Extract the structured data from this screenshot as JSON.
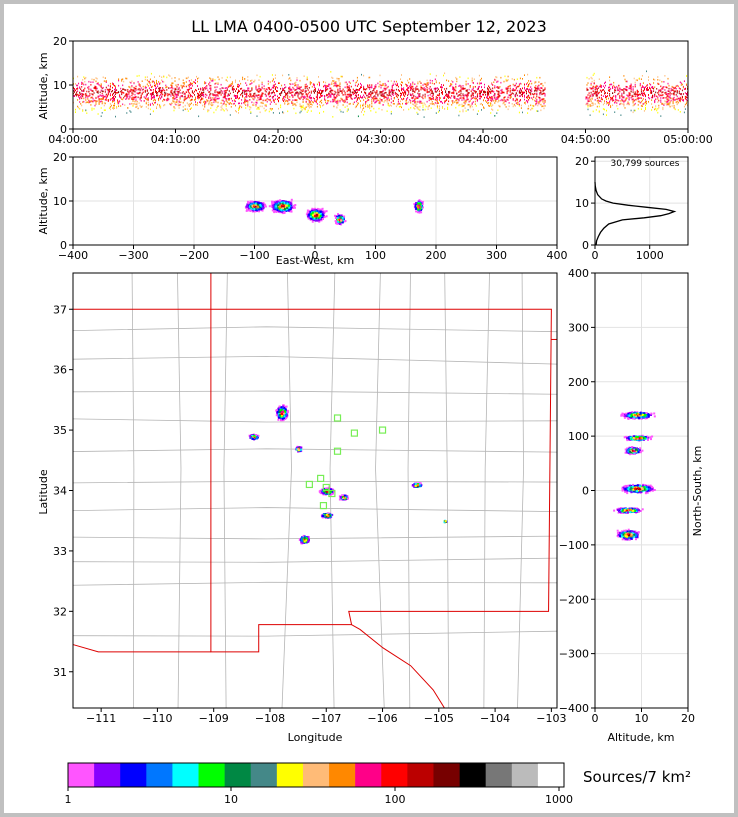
{
  "title": "LL LMA 0400-0500 UTC September 12, 2023",
  "colorbar": {
    "label": "Sources/7 km²",
    "ticks": [
      "1",
      "10",
      "100",
      "1000"
    ],
    "colors": [
      "#ff55ff",
      "#8800ff",
      "#0000ff",
      "#0077ff",
      "#00ffff",
      "#00ff00",
      "#008844",
      "#448888",
      "#ffff00",
      "#ffbb77",
      "#ff8800",
      "#ff0088",
      "#ff0000",
      "#bb0000",
      "#770000",
      "#000000",
      "#777777",
      "#bbbbbb",
      "#ffffff"
    ]
  },
  "panels": {
    "time_height": {
      "ylabel": "Altitude, km",
      "yticks": [
        "0",
        "10",
        "20"
      ],
      "xticks": [
        "04:00:00",
        "04:10:00",
        "04:20:00",
        "04:30:00",
        "04:40:00",
        "04:50:00",
        "05:00:00"
      ]
    },
    "ew_height": {
      "ylabel": "Altitude, km",
      "xlabel": "East-West, km",
      "yticks": [
        "0",
        "10",
        "20"
      ],
      "xticks": [
        "−400",
        "−300",
        "−200",
        "−100",
        "0",
        "100",
        "200",
        "300",
        "400"
      ]
    },
    "histogram": {
      "annotation": "30,799 sources",
      "yticks": [
        "0",
        "10",
        "20"
      ],
      "xticks": [
        "0",
        "1000"
      ]
    },
    "plan_view": {
      "xlabel": "Longitude",
      "ylabel": "Latitude",
      "xticks": [
        "−111",
        "−110",
        "−109",
        "−108",
        "−107",
        "−106",
        "−105",
        "−104",
        "−103"
      ],
      "yticks": [
        "31",
        "32",
        "33",
        "34",
        "35",
        "36",
        "37"
      ]
    },
    "ns_height": {
      "xlabel": "Altitude, km",
      "ylabel": "North-South, km",
      "xticks": [
        "0",
        "10",
        "20"
      ],
      "yticks": [
        "−400",
        "−300",
        "−200",
        "−100",
        "0",
        "100",
        "200",
        "300",
        "400"
      ]
    }
  },
  "chart_data": {
    "type": "scatter",
    "total_sources": 30799,
    "time_height": {
      "xlim": [
        "04:00:00",
        "05:00:00"
      ],
      "ylim": [
        0,
        20
      ]
    },
    "ew_height": {
      "xlim": [
        -400,
        400
      ],
      "ylim": [
        0,
        20
      ],
      "clusters": [
        {
          "x": -100,
          "alt": 9
        },
        {
          "x": -55,
          "alt": 9
        },
        {
          "x": 0,
          "alt": 7
        },
        {
          "x": 40,
          "alt": 6
        },
        {
          "x": 170,
          "alt": 9
        }
      ]
    },
    "altitude_histogram": {
      "xlim": [
        0,
        1700
      ],
      "ylim": [
        0,
        21
      ],
      "peak_alt_km": 8,
      "peak_count": 1450,
      "profile": [
        [
          0,
          20
        ],
        [
          1,
          30
        ],
        [
          2,
          60
        ],
        [
          3,
          100
        ],
        [
          4,
          160
        ],
        [
          5,
          250
        ],
        [
          6,
          500
        ],
        [
          6.5,
          900
        ],
        [
          7,
          1200
        ],
        [
          7.5,
          1350
        ],
        [
          8,
          1450
        ],
        [
          8.5,
          1300
        ],
        [
          9,
          950
        ],
        [
          9.5,
          600
        ],
        [
          10,
          330
        ],
        [
          10.5,
          200
        ],
        [
          11,
          120
        ],
        [
          12,
          50
        ],
        [
          13,
          20
        ],
        [
          14,
          5
        ],
        [
          15,
          0
        ]
      ]
    },
    "plan_view": {
      "xlim": [
        -111.5,
        -102.9
      ],
      "ylim": [
        30.4,
        37.6
      ],
      "clusters": [
        {
          "lon": -107.8,
          "lat": 35.3
        },
        {
          "lon": -108.3,
          "lat": 34.9
        },
        {
          "lon": -107.5,
          "lat": 34.7
        },
        {
          "lon": -107.0,
          "lat": 34.0
        },
        {
          "lon": -106.7,
          "lat": 33.9
        },
        {
          "lon": -107.0,
          "lat": 33.6
        },
        {
          "lon": -107.4,
          "lat": 33.2
        },
        {
          "lon": -105.4,
          "lat": 34.1
        },
        {
          "lon": -104.9,
          "lat": 33.5
        }
      ],
      "stations": [
        {
          "lon": -106.8,
          "lat": 35.2
        },
        {
          "lon": -106.5,
          "lat": 34.95
        },
        {
          "lon": -106.0,
          "lat": 35.0
        },
        {
          "lon": -106.8,
          "lat": 34.65
        },
        {
          "lon": -107.1,
          "lat": 34.2
        },
        {
          "lon": -107.3,
          "lat": 34.1
        },
        {
          "lon": -107.0,
          "lat": 34.05
        },
        {
          "lon": -106.9,
          "lat": 33.95
        },
        {
          "lon": -107.05,
          "lat": 33.75
        }
      ]
    },
    "ns_height": {
      "xlim": [
        0,
        20
      ],
      "ylim": [
        -400,
        400
      ],
      "clusters": [
        {
          "alt": 9,
          "y": 140
        },
        {
          "alt": 9,
          "y": 98
        },
        {
          "alt": 8,
          "y": 75
        },
        {
          "alt": 9,
          "y": 5
        },
        {
          "alt": 7,
          "y": -35
        },
        {
          "alt": 7,
          "y": -80
        }
      ]
    }
  }
}
